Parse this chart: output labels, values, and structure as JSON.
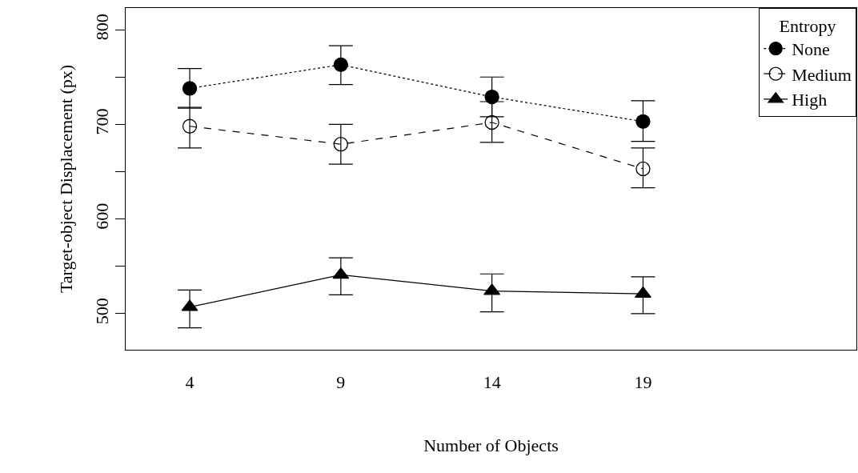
{
  "chart_data": {
    "type": "line",
    "xlabel": "Number of Objects",
    "ylabel": "Target-object Displacement (px)",
    "legend_title": "Entropy",
    "legend": "top right",
    "grid": false,
    "x": [
      4,
      9,
      14,
      19
    ],
    "xlim": [
      1.88,
      26.06
    ],
    "xticks": [
      4,
      9,
      14,
      19
    ],
    "ylim": [
      461.9,
      822.9
    ],
    "yticks": [
      500,
      {
        "value": 550,
        "label": null
      },
      600,
      {
        "value": 650,
        "label": null
      },
      700,
      {
        "value": 750,
        "label": null
      },
      800
    ],
    "series": [
      {
        "name": "None",
        "color": "#000000",
        "marker": "circle",
        "line_style": "dotted",
        "values": [
          738,
          763,
          729,
          703
        ],
        "errors": [
          [
            717,
            759
          ],
          [
            742,
            783
          ],
          [
            708,
            750
          ],
          [
            682,
            725
          ]
        ]
      },
      {
        "name": "Medium",
        "color": "#000000",
        "marker": "circle-open",
        "line_style": "dashed",
        "values": [
          698,
          679,
          702,
          653
        ],
        "errors": [
          [
            675,
            718
          ],
          [
            658,
            700
          ],
          [
            681,
            724
          ],
          [
            633,
            675
          ]
        ]
      },
      {
        "name": "High",
        "color": "#000000",
        "marker": "triangle",
        "line_style": "solid",
        "values": [
          507,
          541,
          524,
          521
        ],
        "errors": [
          [
            485,
            525
          ],
          [
            520,
            559
          ],
          [
            502,
            542
          ],
          [
            500,
            539
          ]
        ]
      }
    ]
  }
}
